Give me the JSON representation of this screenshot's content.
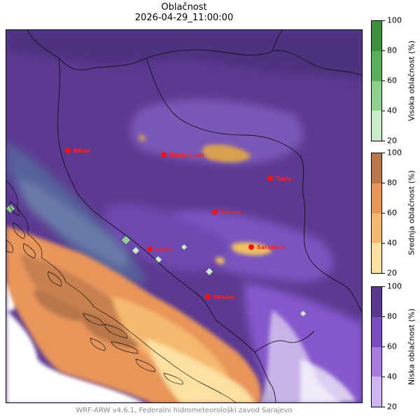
{
  "title": "Oblačnost",
  "datetime": "2026-04-29_11:00:00",
  "footer": "WRF-ARW v4.6.1, Federalni hidrometeorološki zavod Sarajevo",
  "cities": [
    {
      "name": "Bihać",
      "key": "bihac"
    },
    {
      "name": "Banja Luka",
      "key": "banja-luka"
    },
    {
      "name": "Tuzla",
      "key": "tuzla"
    },
    {
      "name": "Zenica",
      "key": "zenica"
    },
    {
      "name": "Sarajevo",
      "key": "sarajevo"
    },
    {
      "name": "Livno",
      "key": "livno"
    },
    {
      "name": "Mostar",
      "key": "mostar"
    }
  ],
  "colorbars": [
    {
      "label": "Visoka oblačnost (%)",
      "ticks": [
        "100",
        "80",
        "60",
        "40",
        "20"
      ],
      "colors": [
        "#3f8f3f",
        "#5aaf5a",
        "#8fd08f",
        "#c8ecc8"
      ]
    },
    {
      "label": "Srednja oblačnost (%)",
      "ticks": [
        "100",
        "80",
        "60",
        "40",
        "20"
      ],
      "colors": [
        "#b8764a",
        "#e8955a",
        "#f5b870",
        "#fde0a0"
      ]
    },
    {
      "label": "Niska oblačnost (%)",
      "ticks": [
        "100",
        "80",
        "60",
        "40",
        "20"
      ],
      "colors": [
        "#5a3a90",
        "#7a4ec0",
        "#a77ae0",
        "#cfb4f2"
      ]
    }
  ]
}
